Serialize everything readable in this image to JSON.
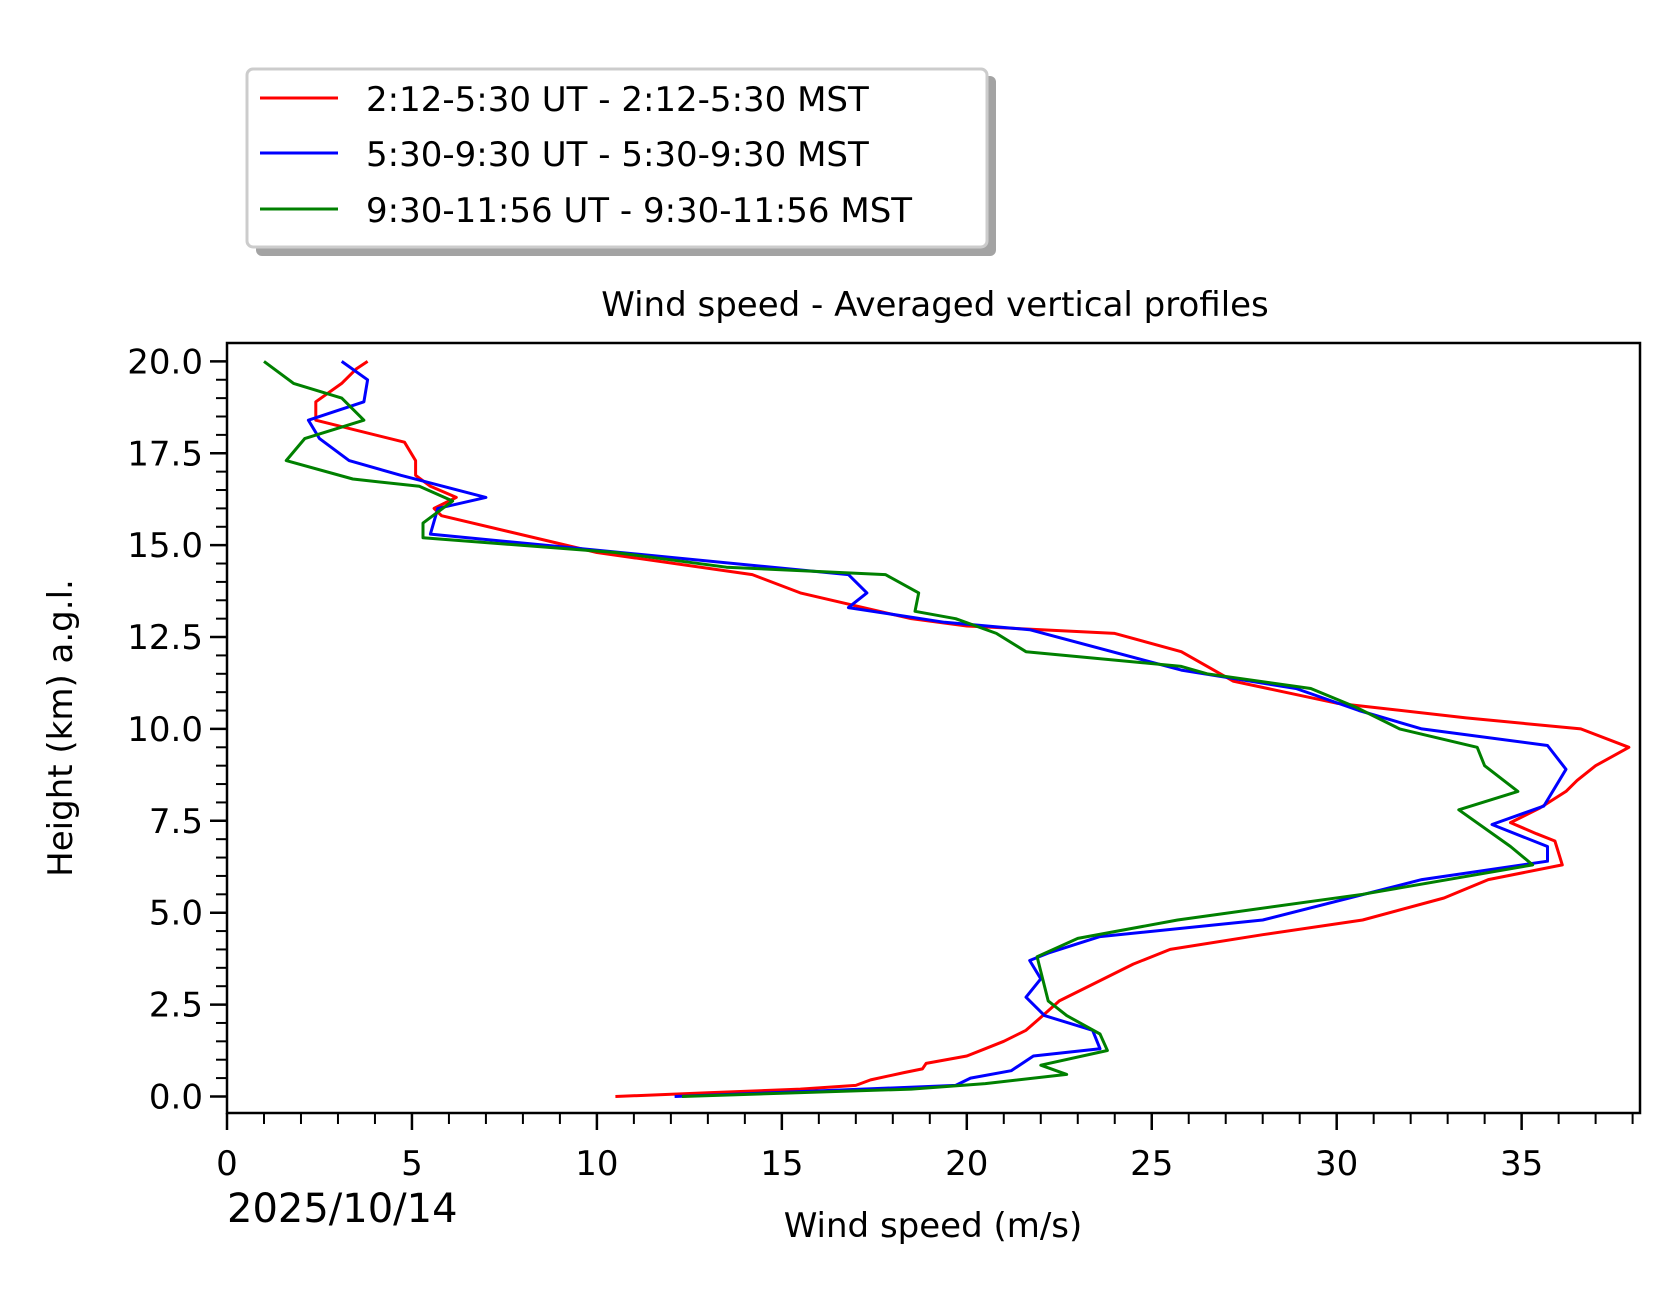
{
  "chart_data": {
    "type": "line",
    "title": "Wind speed - Averaged vertical profiles",
    "xlabel": "Wind speed (m/s)",
    "ylabel": "Height (km) a.g.l.",
    "date_label": "2025/10/14",
    "xlim": [
      0,
      38.2
    ],
    "ylim": [
      -0.45,
      20.5
    ],
    "x_ticks": [
      0,
      5,
      10,
      15,
      20,
      25,
      30,
      35
    ],
    "x_tick_labels": [
      "0",
      "5",
      "10",
      "15",
      "20",
      "25",
      "30",
      "35"
    ],
    "y_ticks": [
      0,
      2.5,
      5,
      7.5,
      10,
      12.5,
      15,
      17.5,
      20
    ],
    "y_tick_labels": [
      "0.0",
      "2.5",
      "5.0",
      "7.5",
      "10.0",
      "12.5",
      "15.0",
      "17.5",
      "20.0"
    ],
    "grid": false,
    "legend_position": "above-left",
    "series": [
      {
        "name": "2:12-5:30 UT - 2:12-5:30 MST",
        "color": "#ff0000",
        "points": [
          [
            10.5,
            0.0
          ],
          [
            13.0,
            0.1
          ],
          [
            15.5,
            0.2
          ],
          [
            17.0,
            0.3
          ],
          [
            17.4,
            0.45
          ],
          [
            18.3,
            0.65
          ],
          [
            18.8,
            0.75
          ],
          [
            18.9,
            0.9
          ],
          [
            20.0,
            1.1
          ],
          [
            20.5,
            1.3
          ],
          [
            21.0,
            1.5
          ],
          [
            21.6,
            1.8
          ],
          [
            22.0,
            2.15
          ],
          [
            22.5,
            2.6
          ],
          [
            23.5,
            3.1
          ],
          [
            24.5,
            3.6
          ],
          [
            25.5,
            4.0
          ],
          [
            28.0,
            4.4
          ],
          [
            30.7,
            4.8
          ],
          [
            32.9,
            5.4
          ],
          [
            34.1,
            5.9
          ],
          [
            36.1,
            6.3
          ],
          [
            35.9,
            6.95
          ],
          [
            35.4,
            7.15
          ],
          [
            34.7,
            7.45
          ],
          [
            35.5,
            7.85
          ],
          [
            36.2,
            8.3
          ],
          [
            36.5,
            8.6
          ],
          [
            37.0,
            9.0
          ],
          [
            37.9,
            9.5
          ],
          [
            36.6,
            10.0
          ],
          [
            33.5,
            10.3
          ],
          [
            30.0,
            10.7
          ],
          [
            27.2,
            11.3
          ],
          [
            25.8,
            12.1
          ],
          [
            24.0,
            12.6
          ],
          [
            20.0,
            12.8
          ],
          [
            18.5,
            13.0
          ],
          [
            17.2,
            13.3
          ],
          [
            15.5,
            13.7
          ],
          [
            14.2,
            14.2
          ],
          [
            10.0,
            14.8
          ],
          [
            5.8,
            15.8
          ],
          [
            5.6,
            16.0
          ],
          [
            6.2,
            16.3
          ],
          [
            5.5,
            16.6
          ],
          [
            5.1,
            16.9
          ],
          [
            5.1,
            17.3
          ],
          [
            4.8,
            17.8
          ],
          [
            2.4,
            18.4
          ],
          [
            2.4,
            18.9
          ],
          [
            3.1,
            19.4
          ],
          [
            3.5,
            19.8
          ],
          [
            3.8,
            20.0
          ]
        ]
      },
      {
        "name": "5:30-9:30 UT - 5:30-9:30 MST",
        "color": "#0000ff",
        "points": [
          [
            12.1,
            0.0
          ],
          [
            16.0,
            0.15
          ],
          [
            19.7,
            0.3
          ],
          [
            20.1,
            0.5
          ],
          [
            21.2,
            0.7
          ],
          [
            21.8,
            1.1
          ],
          [
            23.6,
            1.3
          ],
          [
            23.4,
            1.8
          ],
          [
            22.1,
            2.2
          ],
          [
            21.6,
            2.7
          ],
          [
            22.0,
            3.2
          ],
          [
            21.7,
            3.7
          ],
          [
            22.2,
            3.9
          ],
          [
            23.6,
            4.35
          ],
          [
            28.0,
            4.8
          ],
          [
            32.3,
            5.9
          ],
          [
            35.7,
            6.4
          ],
          [
            35.7,
            6.8
          ],
          [
            34.2,
            7.4
          ],
          [
            35.6,
            7.9
          ],
          [
            36.2,
            8.9
          ],
          [
            35.7,
            9.55
          ],
          [
            32.3,
            10.0
          ],
          [
            30.6,
            10.5
          ],
          [
            28.9,
            11.1
          ],
          [
            25.8,
            11.6
          ],
          [
            21.7,
            12.7
          ],
          [
            19.4,
            12.9
          ],
          [
            16.8,
            13.3
          ],
          [
            17.3,
            13.7
          ],
          [
            16.8,
            14.2
          ],
          [
            9.6,
            14.9
          ],
          [
            5.5,
            15.3
          ],
          [
            5.7,
            16.0
          ],
          [
            7.0,
            16.3
          ],
          [
            4.7,
            16.9
          ],
          [
            3.3,
            17.3
          ],
          [
            2.5,
            17.9
          ],
          [
            2.2,
            18.4
          ],
          [
            3.7,
            18.9
          ],
          [
            3.8,
            19.5
          ],
          [
            3.1,
            20.0
          ]
        ]
      },
      {
        "name": "9:30-11:56 UT - 9:30-11:56 MST",
        "color": "#008000",
        "points": [
          [
            12.3,
            0.0
          ],
          [
            18.5,
            0.2
          ],
          [
            20.5,
            0.35
          ],
          [
            22.7,
            0.6
          ],
          [
            22.0,
            0.85
          ],
          [
            23.8,
            1.25
          ],
          [
            23.6,
            1.7
          ],
          [
            22.7,
            2.2
          ],
          [
            22.2,
            2.6
          ],
          [
            22.0,
            3.4
          ],
          [
            21.9,
            3.8
          ],
          [
            23.0,
            4.3
          ],
          [
            25.7,
            4.8
          ],
          [
            30.7,
            5.5
          ],
          [
            35.3,
            6.3
          ],
          [
            34.7,
            6.8
          ],
          [
            33.3,
            7.8
          ],
          [
            34.9,
            8.3
          ],
          [
            34.0,
            9.0
          ],
          [
            33.8,
            9.5
          ],
          [
            31.7,
            10.0
          ],
          [
            30.5,
            10.6
          ],
          [
            29.3,
            11.1
          ],
          [
            26.5,
            11.5
          ],
          [
            25.8,
            11.7
          ],
          [
            21.6,
            12.1
          ],
          [
            20.8,
            12.6
          ],
          [
            19.7,
            13.0
          ],
          [
            18.6,
            13.2
          ],
          [
            18.7,
            13.7
          ],
          [
            17.8,
            14.2
          ],
          [
            13.5,
            14.4
          ],
          [
            10.5,
            14.8
          ],
          [
            5.3,
            15.2
          ],
          [
            5.3,
            15.6
          ],
          [
            6.1,
            16.2
          ],
          [
            5.2,
            16.6
          ],
          [
            3.4,
            16.8
          ],
          [
            1.6,
            17.3
          ],
          [
            2.1,
            17.9
          ],
          [
            3.7,
            18.4
          ],
          [
            3.1,
            19.0
          ],
          [
            1.8,
            19.4
          ],
          [
            1.0,
            20.0
          ]
        ]
      }
    ]
  }
}
